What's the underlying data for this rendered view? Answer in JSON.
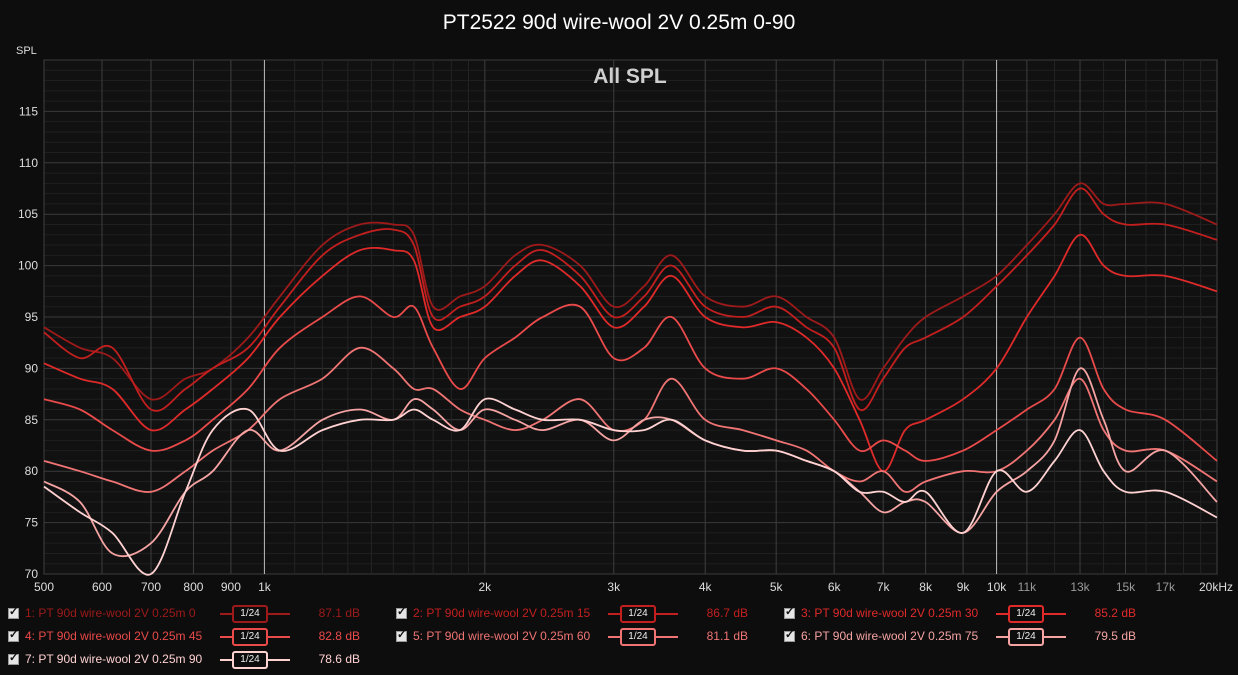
{
  "chart_data": {
    "type": "line",
    "title": "PT2522 90d wire-wool 2V 0.25m 0-90",
    "subtitle": "All SPL",
    "ylabel": "SPL",
    "xlabel": "",
    "x_scale": "log",
    "xlim": [
      500,
      20000
    ],
    "ylim": [
      70,
      120
    ],
    "grid": true,
    "y_ticks": [
      70,
      75,
      80,
      85,
      90,
      95,
      100,
      105,
      110,
      115
    ],
    "x_ticks": [
      {
        "v": 500,
        "label": "500"
      },
      {
        "v": 600,
        "label": "600"
      },
      {
        "v": 700,
        "label": "700"
      },
      {
        "v": 800,
        "label": "800"
      },
      {
        "v": 900,
        "label": "900"
      },
      {
        "v": 1000,
        "label": "1k"
      },
      {
        "v": 2000,
        "label": "2k"
      },
      {
        "v": 3000,
        "label": "3k"
      },
      {
        "v": 4000,
        "label": "4k"
      },
      {
        "v": 5000,
        "label": "5k"
      },
      {
        "v": 6000,
        "label": "6k"
      },
      {
        "v": 7000,
        "label": "7k"
      },
      {
        "v": 8000,
        "label": "8k"
      },
      {
        "v": 9000,
        "label": "9k"
      },
      {
        "v": 10000,
        "label": "10k"
      },
      {
        "v": 11000,
        "label": "11k"
      },
      {
        "v": 13000,
        "label": "13k"
      },
      {
        "v": 15000,
        "label": "15k"
      },
      {
        "v": 17000,
        "label": "17k"
      },
      {
        "v": 20000,
        "label": "20kHz"
      }
    ],
    "series": [
      {
        "name": "1: PT 90d wire-wool 2V 0.25m 0",
        "level": "87.1 dB",
        "smoothing": "1/24",
        "color": "#9e1a1a",
        "x": [
          500,
          560,
          620,
          700,
          780,
          850,
          950,
          1050,
          1200,
          1350,
          1500,
          1600,
          1700,
          1850,
          2000,
          2200,
          2400,
          2700,
          3000,
          3300,
          3600,
          4000,
          4500,
          5000,
          5500,
          6000,
          6500,
          7000,
          7500,
          8000,
          9000,
          10000,
          11000,
          12000,
          13000,
          14000,
          15000,
          17000,
          20000
        ],
        "y": [
          94,
          92,
          91,
          87,
          89,
          90,
          93,
          97,
          102,
          104,
          104,
          103,
          96,
          97,
          98,
          101,
          102,
          100,
          96,
          98,
          101,
          97,
          96,
          97,
          95,
          93,
          87,
          90,
          93,
          95,
          97,
          99,
          102,
          105,
          108,
          106,
          106,
          106,
          104
        ]
      },
      {
        "name": "2: PT 90d wire-wool 2V 0.25m 15",
        "level": "86.7 dB",
        "smoothing": "1/24",
        "color": "#c41f1f",
        "x": [
          500,
          560,
          620,
          700,
          780,
          850,
          950,
          1050,
          1200,
          1350,
          1500,
          1600,
          1700,
          1850,
          2000,
          2200,
          2400,
          2700,
          3000,
          3300,
          3600,
          4000,
          4500,
          5000,
          5500,
          6000,
          6500,
          7000,
          7500,
          8000,
          9000,
          10000,
          11000,
          12000,
          13000,
          14000,
          15000,
          17000,
          20000
        ],
        "y": [
          93.5,
          91,
          92,
          86,
          88,
          90,
          92,
          96,
          101,
          103,
          103.5,
          102,
          95,
          96,
          97,
          100,
          101.5,
          99,
          95,
          97,
          100,
          96,
          95,
          96,
          94,
          92,
          86,
          89,
          92,
          93,
          95,
          98,
          101,
          104,
          107.5,
          105,
          104,
          104,
          102.5
        ]
      },
      {
        "name": "3: PT 90d wire-wool 2V 0.25m 30",
        "level": "85.2 dB",
        "smoothing": "1/24",
        "color": "#e02a2a",
        "x": [
          500,
          560,
          620,
          700,
          780,
          850,
          950,
          1050,
          1200,
          1350,
          1500,
          1600,
          1700,
          1850,
          2000,
          2200,
          2400,
          2700,
          3000,
          3300,
          3600,
          4000,
          4500,
          5000,
          5500,
          6000,
          6500,
          7000,
          7500,
          8000,
          9000,
          10000,
          11000,
          12000,
          13000,
          14000,
          15000,
          17000,
          20000
        ],
        "y": [
          90.5,
          89,
          88,
          84,
          86,
          88,
          91,
          95,
          99,
          101.5,
          101.5,
          100.5,
          94,
          95,
          96,
          99,
          100.5,
          98,
          94,
          96,
          99,
          95,
          94,
          94.5,
          93,
          90,
          85,
          80,
          84,
          85,
          87,
          90,
          95,
          99,
          103,
          100,
          99,
          99,
          97.5
        ]
      },
      {
        "name": "4: PT 90d wire-wool 2V 0.25m 45",
        "level": "82.8 dB",
        "smoothing": "1/24",
        "color": "#ea4a4a",
        "x": [
          500,
          560,
          620,
          700,
          780,
          850,
          950,
          1050,
          1200,
          1350,
          1500,
          1600,
          1700,
          1850,
          2000,
          2200,
          2400,
          2700,
          3000,
          3300,
          3600,
          4000,
          4500,
          5000,
          5500,
          6000,
          6500,
          7000,
          7500,
          8000,
          9000,
          10000,
          11000,
          12000,
          13000,
          14000,
          15000,
          17000,
          20000
        ],
        "y": [
          87,
          86,
          84,
          82,
          83,
          85,
          88,
          92,
          95,
          97,
          95,
          96,
          92,
          88,
          91,
          93,
          95,
          96,
          91,
          92,
          95,
          90,
          89,
          90,
          88,
          85,
          82,
          83,
          82,
          81,
          82,
          84,
          86,
          88,
          93,
          88,
          86,
          85,
          81
        ]
      },
      {
        "name": "5: PT 90d wire-wool 2V 0.25m 60",
        "level": "81.1 dB",
        "smoothing": "1/24",
        "color": "#f07474",
        "x": [
          500,
          560,
          620,
          700,
          780,
          850,
          950,
          1050,
          1200,
          1350,
          1500,
          1600,
          1700,
          1850,
          2000,
          2200,
          2400,
          2700,
          3000,
          3300,
          3600,
          4000,
          4500,
          5000,
          5500,
          6000,
          6500,
          7000,
          7500,
          8000,
          9000,
          10000,
          11000,
          12000,
          13000,
          14000,
          15000,
          17000,
          20000
        ],
        "y": [
          81,
          80,
          79,
          78,
          80,
          82,
          84,
          87,
          89,
          92,
          90,
          88,
          88,
          86,
          85,
          84,
          85,
          87,
          84,
          85,
          89,
          85,
          84,
          83,
          82,
          80,
          79,
          80,
          78,
          79,
          80,
          80,
          82,
          85,
          89,
          84,
          82,
          82,
          79
        ]
      },
      {
        "name": "6: PT 90d wire-wool 2V 0.25m 75",
        "level": "79.5 dB",
        "smoothing": "1/24",
        "color": "#f5a3a3",
        "x": [
          500,
          560,
          620,
          700,
          780,
          850,
          950,
          1050,
          1200,
          1350,
          1500,
          1600,
          1700,
          1850,
          2000,
          2200,
          2400,
          2700,
          3000,
          3300,
          3600,
          4000,
          4500,
          5000,
          5500,
          6000,
          6500,
          7000,
          7500,
          8000,
          9000,
          10000,
          11000,
          12000,
          13000,
          14000,
          15000,
          17000,
          20000
        ],
        "y": [
          79,
          77,
          72,
          73,
          78,
          80,
          84,
          82,
          85,
          86,
          85,
          87,
          86,
          84,
          86,
          85,
          84,
          85,
          83,
          85,
          85,
          83,
          82,
          82,
          81,
          80,
          78,
          76,
          77,
          77,
          74,
          78,
          80,
          83,
          90,
          85,
          80,
          82,
          77
        ]
      },
      {
        "name": "7: PT 90d wire-wool 2V 0.25m 90",
        "level": "78.6 dB",
        "smoothing": "1/24",
        "color": "#ffd2d2",
        "x": [
          500,
          560,
          620,
          700,
          780,
          850,
          950,
          1050,
          1200,
          1350,
          1500,
          1600,
          1700,
          1850,
          2000,
          2200,
          2400,
          2700,
          3000,
          3300,
          3600,
          4000,
          4500,
          5000,
          5500,
          6000,
          6500,
          7000,
          7500,
          8000,
          9000,
          10000,
          11000,
          12000,
          13000,
          14000,
          15000,
          17000,
          20000
        ],
        "y": [
          78.5,
          76,
          74,
          70,
          78,
          84,
          86,
          82,
          84,
          85,
          85,
          86,
          85,
          84,
          87,
          86,
          85,
          85,
          84,
          84,
          85,
          83,
          82,
          82,
          81,
          80,
          78,
          78,
          77,
          78,
          74,
          80,
          78,
          81,
          84,
          80,
          78,
          78,
          75.5
        ]
      }
    ]
  }
}
